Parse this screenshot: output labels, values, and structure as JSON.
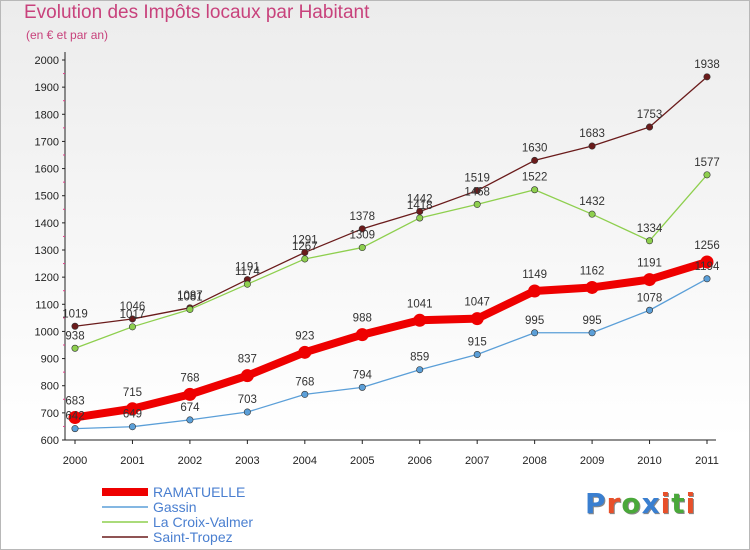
{
  "title": "Evolution des Impôts locaux par Habitant",
  "subtitle": "(en € et par an)",
  "logo": {
    "text": "Proxiti",
    "letter_colors": [
      "#3a7fd0",
      "#e8502a",
      "#4aa83a",
      "#3a7fd0",
      "#e8502a",
      "#4aa83a",
      "#e8502a"
    ]
  },
  "chart_data": {
    "type": "line",
    "x": [
      2000,
      2001,
      2002,
      2003,
      2004,
      2005,
      2006,
      2007,
      2008,
      2009,
      2010,
      2011
    ],
    "ylim": [
      600,
      2000
    ],
    "yticks": [
      600,
      700,
      800,
      900,
      1000,
      1100,
      1200,
      1300,
      1400,
      1500,
      1600,
      1700,
      1800,
      1900,
      2000
    ],
    "grid": false,
    "legend": "bottom-left",
    "series": [
      {
        "name": "Saint-Tropez",
        "color": "#6a1b1b",
        "values": [
          1019,
          1046,
          1087,
          1191,
          1291,
          1378,
          1442,
          1519,
          1630,
          1683,
          1753,
          1938
        ]
      },
      {
        "name": "La Croix-Valmer",
        "color": "#8ecf4e",
        "values": [
          938,
          1017,
          1081,
          1174,
          1267,
          1309,
          1418,
          1468,
          1522,
          1432,
          1334,
          1577
        ]
      },
      {
        "name": "Gassin",
        "color": "#5b9fd8",
        "values": [
          642,
          649,
          674,
          703,
          768,
          794,
          859,
          915,
          995,
          995,
          1078,
          1194
        ]
      },
      {
        "name": "RAMATUELLE",
        "color": "#ee0000",
        "values": [
          683,
          715,
          768,
          837,
          923,
          988,
          1041,
          1047,
          1149,
          1162,
          1191,
          1256
        ]
      }
    ]
  }
}
